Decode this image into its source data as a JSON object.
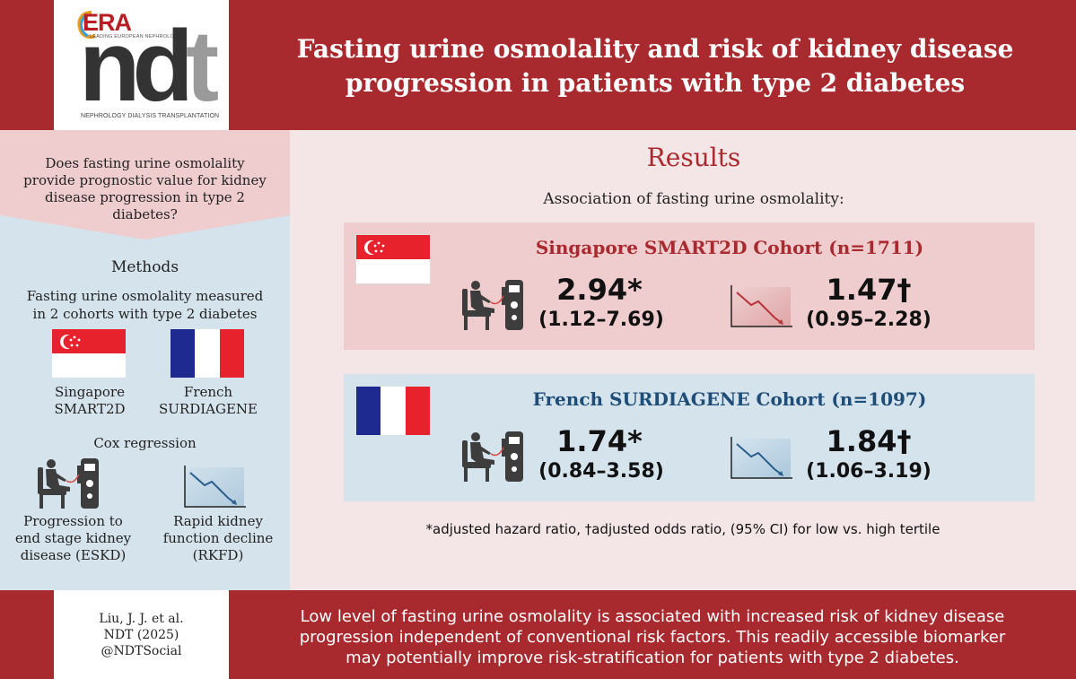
{
  "header": {
    "logo": {
      "era": "ERA",
      "era_sub": "LEADING EUROPEAN NEPHROLOGY",
      "ndt": "nd",
      "ndt_t": "t",
      "tagline": "NEPHROLOGY DIALYSIS TRANSPLANTATION"
    },
    "title_line1": "Fasting urine osmolality and risk of kidney disease",
    "title_line2": "progression in patients with type 2 diabetes"
  },
  "left": {
    "question": [
      "Does fasting urine osmolality",
      "provide prognostic value for kidney",
      "disease progression in type 2",
      "diabetes?"
    ],
    "methods_heading": "Methods",
    "methods_text": [
      "Fasting urine osmolality measured",
      "in 2 cohorts with type 2 diabetes"
    ],
    "cohort1": [
      "Singapore",
      "SMART2D"
    ],
    "cohort2": [
      "French",
      "SURDIAGENE"
    ],
    "analysis": "Cox regression",
    "outcome1": [
      "Progression to",
      "end stage kidney",
      "disease (ESKD)"
    ],
    "outcome2": [
      "Rapid kidney",
      "function decline",
      "(RKFD)"
    ]
  },
  "results": {
    "heading": "Results",
    "subheading": "Association of fasting urine osmolality:",
    "cohorts": [
      {
        "name": "Singapore SMART2D Cohort (n=1711)",
        "eskd_value": "2.94*",
        "eskd_ci": "(1.12–7.69)",
        "rkfd_value": "1.47†",
        "rkfd_ci": "(0.95–2.28)"
      },
      {
        "name": "French SURDIAGENE Cohort (n=1097)",
        "eskd_value": "1.74*",
        "eskd_ci": "(0.84–3.58)",
        "rkfd_value": "1.84†",
        "rkfd_ci": "(1.06–3.19)"
      }
    ],
    "footnote": "*adjusted hazard ratio, †adjusted odds ratio, (95% CI) for low vs. high tertile"
  },
  "footer": {
    "citation": [
      "Liu, J. J. et al.",
      "NDT (2025)",
      "@NDTSocial"
    ],
    "conclusion": [
      "Low level of fasting urine osmolality is associated with increased risk of kidney disease",
      "progression independent of conventional risk factors. This readily accessible biomarker",
      "may potentially improve risk-stratification for patients with type 2 diabetes."
    ]
  },
  "colors": {
    "brand_red": "#a8292e",
    "light_blue": "#d5e3ec",
    "light_pink": "#f4e6e6",
    "cohort_pink": "#efcccd",
    "french_navy": "#1e4d78"
  },
  "icons": [
    "dialysis-patient-icon",
    "declining-chart-icon",
    "singapore-flag-icon",
    "france-flag-icon"
  ]
}
